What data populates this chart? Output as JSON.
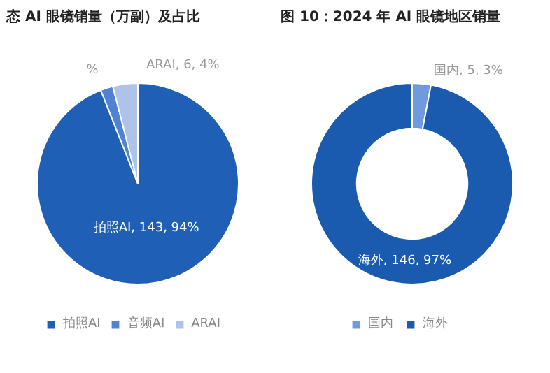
{
  "chart_data": [
    {
      "type": "pie",
      "title": "态 AI 眼镜销量（万副）及占比",
      "categories": [
        "拍照AI",
        "音频AI",
        "ARAI"
      ],
      "values": [
        94,
        2,
        4
      ],
      "colors": [
        "#1f5fb5",
        "#4f82d2",
        "#aec3e8"
      ],
      "value_labels": [
        "拍照AI, 143, 94%",
        "%",
        "ARAI, 6, 4%"
      ],
      "legend": "bottom"
    },
    {
      "type": "donut",
      "title": "图 10：2024 年 AI 眼镜地区销量",
      "categories": [
        "国内",
        "海外"
      ],
      "values": [
        3,
        97
      ],
      "colors": [
        "#6f9ade",
        "#1a5bb0"
      ],
      "value_labels": [
        "国内, 5, 3%",
        "海外, 146, 97%"
      ],
      "legend": "bottom"
    }
  ]
}
